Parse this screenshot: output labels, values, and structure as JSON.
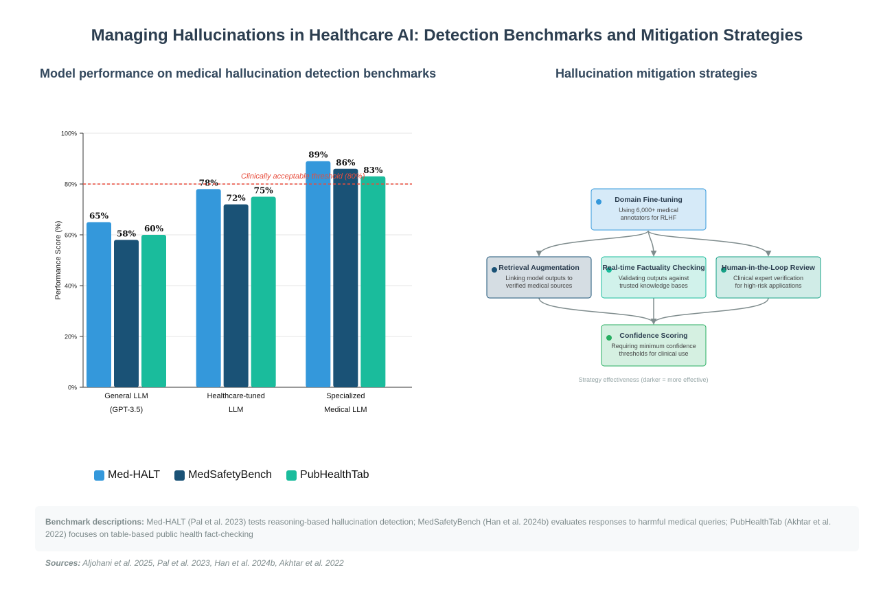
{
  "title": "Managing Hallucinations in Healthcare AI: Detection Benchmarks and Mitigation Strategies",
  "chart_panel_title": "Model performance on medical hallucination detection benchmarks",
  "diagram_panel_title": "Hallucination mitigation strategies",
  "chart_data": {
    "type": "bar",
    "categories": [
      [
        "General LLM",
        "(GPT-3.5)"
      ],
      [
        "Healthcare-tuned",
        "LLM"
      ],
      [
        "Specialized",
        "Medical LLM"
      ]
    ],
    "series": [
      {
        "name": "Med-HALT",
        "color": "#3498db",
        "values": [
          65,
          78,
          89
        ]
      },
      {
        "name": "MedSafetyBench",
        "color": "#1a5276",
        "values": [
          58,
          72,
          86
        ]
      },
      {
        "name": "PubHealthTab",
        "color": "#1abc9c",
        "values": [
          60,
          75,
          83
        ]
      }
    ],
    "value_suffix": "%",
    "ylabel": "Performance Score (%)",
    "ylim": [
      0,
      100
    ],
    "yticks": [
      0,
      20,
      40,
      60,
      80,
      100
    ],
    "ytick_labels": [
      "0%",
      "20%",
      "40%",
      "60%",
      "80%",
      "100%"
    ],
    "grid": true,
    "threshold": {
      "value": 80,
      "label": "Clinically acceptable threshold (80%)",
      "color": "#e74c3c"
    },
    "legend_position": "bottom"
  },
  "diagram": {
    "nodes": [
      {
        "id": "fine-tuning",
        "title": "Domain Fine-tuning",
        "desc": [
          "Using 6,000+ medical",
          "annotators for RLHF"
        ],
        "fill": "#d6eaf8",
        "stroke": "#3498db",
        "dot": "#3498db"
      },
      {
        "id": "retrieval",
        "title": "Retrieval Augmentation",
        "desc": [
          "Linking model outputs to",
          "verified medical sources"
        ],
        "fill": "#d5dde3",
        "stroke": "#1a5276",
        "dot": "#1a5276"
      },
      {
        "id": "factuality",
        "title": "Real-time Factuality Checking",
        "desc": [
          "Validating outputs against",
          "trusted knowledge bases"
        ],
        "fill": "#d1f2eb",
        "stroke": "#1abc9c",
        "dot": "#1abc9c"
      },
      {
        "id": "human-loop",
        "title": "Human-in-the-Loop Review",
        "desc": [
          "Clinical expert verification",
          "for high-risk applications"
        ],
        "fill": "#d0ece7",
        "stroke": "#16a085",
        "dot": "#16a085"
      },
      {
        "id": "confidence",
        "title": "Confidence Scoring",
        "desc": [
          "Requiring minimum confidence",
          "thresholds for clinical use"
        ],
        "fill": "#d5f0e1",
        "stroke": "#27ae60",
        "dot": "#27ae60"
      }
    ],
    "note": "Strategy effectiveness (darker = more effective)"
  },
  "footer": {
    "descriptions_label": "Benchmark descriptions:",
    "descriptions_text": " Med-HALT (Pal et al. 2023) tests reasoning-based hallucination detection; MedSafetyBench (Han et al. 2024b) evaluates responses to harmful medical queries; PubHealthTab (Akhtar et al. 2022) focuses on table-based public health fact-checking",
    "sources_label": "Sources:",
    "sources_text": " Aljohani et al. 2025, Pal et al. 2023, Han et al. 2024b, Akhtar et al. 2022"
  }
}
